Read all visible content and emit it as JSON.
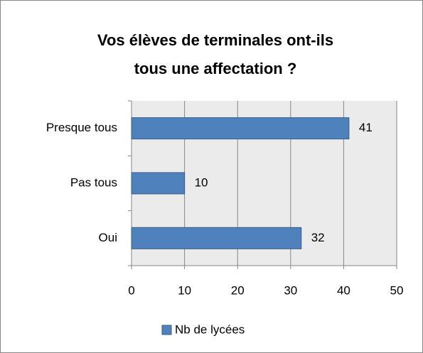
{
  "chart_data": {
    "type": "barh",
    "title": [
      "Vos élèves de terminales ont-ils",
      "tous une affectation ?"
    ],
    "categories": [
      "Presque tous",
      "Pas tous",
      "Oui"
    ],
    "series": [
      {
        "name": "Nb de lycées",
        "color": "#4f81bd",
        "values": [
          41,
          10,
          32
        ]
      }
    ],
    "xlim": [
      0,
      50
    ],
    "xticks": [
      0,
      10,
      20,
      30,
      40,
      50
    ],
    "grid": true,
    "legend": "bottom"
  }
}
